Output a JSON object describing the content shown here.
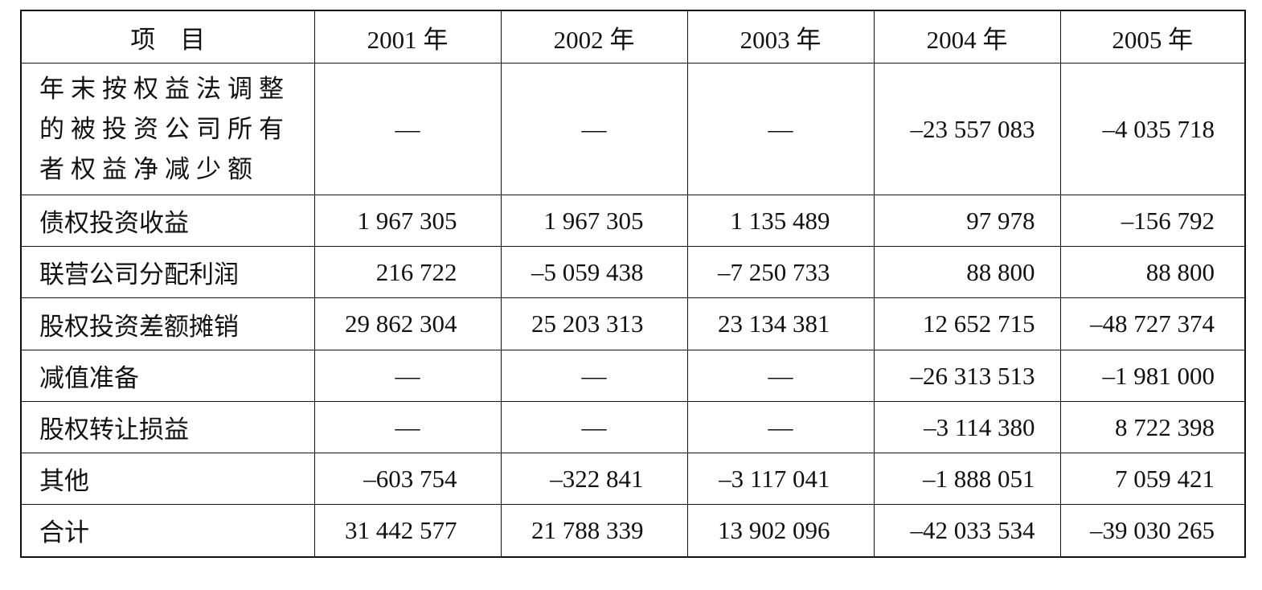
{
  "table": {
    "header": [
      "项　目",
      "2001 年",
      "2002 年",
      "2003 年",
      "2004 年",
      "2005 年"
    ],
    "rows": [
      [
        "年末按权益法调整的被投资公司所有者权益净减少额",
        "—",
        "—",
        "—",
        "–23 557 083",
        "–4 035 718"
      ],
      [
        "债权投资收益",
        "1 967 305",
        "1 967 305",
        "1 135 489",
        "97 978",
        "–156 792"
      ],
      [
        "联营公司分配利润",
        "216 722",
        "–5 059 438",
        "–7 250 733",
        "88 800",
        "88 800"
      ],
      [
        "股权投资差额摊销",
        "29 862 304",
        "25 203 313",
        "23 134 381",
        "12 652 715",
        "–48 727 374"
      ],
      [
        "减值准备",
        "—",
        "—",
        "—",
        "–26 313 513",
        "–1 981 000"
      ],
      [
        "股权转让损益",
        "—",
        "—",
        "—",
        "–3 114 380",
        "8 722 398"
      ],
      [
        "其他",
        "–603 754",
        "–322 841",
        "–3 117 041",
        "–1 888 051",
        "7 059 421"
      ],
      [
        "合计",
        "31 442 577",
        "21 788 339",
        "13 902 096",
        "–42 033 534",
        "–39 030 265"
      ]
    ]
  }
}
